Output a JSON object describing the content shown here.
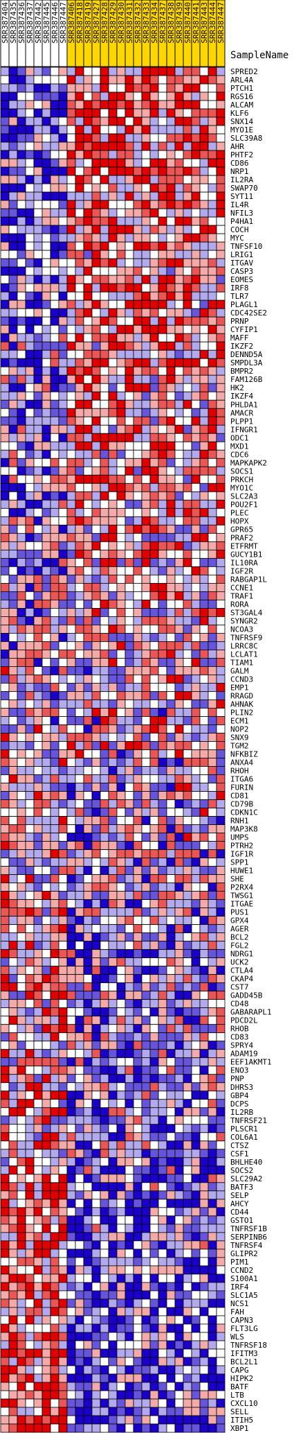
{
  "chart_data": {
    "type": "heatmap",
    "column_header_title": "SampleName",
    "columns": [
      {
        "name": "SRR387404",
        "group": "white"
      },
      {
        "name": "SRR387435",
        "group": "white"
      },
      {
        "name": "SRR387436",
        "group": "white"
      },
      {
        "name": "SRR387437",
        "group": "white"
      },
      {
        "name": "SRR387442",
        "group": "white"
      },
      {
        "name": "SRR387445",
        "group": "white"
      },
      {
        "name": "SRR387446",
        "group": "white"
      },
      {
        "name": "SRR387447",
        "group": "white"
      },
      {
        "name": "SRR387406",
        "group": "gold"
      },
      {
        "name": "SRR387418",
        "group": "gold"
      },
      {
        "name": "SRR387419",
        "group": "gold"
      },
      {
        "name": "SRR387427",
        "group": "gold"
      },
      {
        "name": "SRR387428",
        "group": "gold"
      },
      {
        "name": "SRR387429",
        "group": "gold"
      },
      {
        "name": "SRR387430",
        "group": "gold"
      },
      {
        "name": "SRR387431",
        "group": "gold"
      },
      {
        "name": "SRR387432",
        "group": "gold"
      },
      {
        "name": "SRR387433",
        "group": "gold"
      },
      {
        "name": "SRR387434",
        "group": "gold"
      },
      {
        "name": "SRR387437",
        "group": "gold"
      },
      {
        "name": "SRR387438",
        "group": "gold"
      },
      {
        "name": "SRR387439",
        "group": "gold"
      },
      {
        "name": "SRR387440",
        "group": "gold"
      },
      {
        "name": "SRR387441",
        "group": "gold"
      },
      {
        "name": "SRR387443",
        "group": "gold"
      },
      {
        "name": "SRR387444",
        "group": "gold"
      },
      {
        "name": "SRR387447",
        "group": "gold"
      }
    ],
    "rows": [
      "SPRED2",
      "ARL4A",
      "PTCH1",
      "RGS16",
      "ALCAM",
      "KLF6",
      "SNX14",
      "MYO1E",
      "SLC39A8",
      "AHR",
      "PHTF2",
      "CD86",
      "NRP1",
      "IL2RA",
      "SWAP70",
      "SYT11",
      "IL4R",
      "NFIL3",
      "P4HA1",
      "COCH",
      "MYC",
      "TNFSF10",
      "LRIG1",
      "ITGAV",
      "CASP3",
      "EOMES",
      "IRF8",
      "TLR7",
      "PLAGL1",
      "CDC42SE2",
      "PRNP",
      "CYFIP1",
      "MAFF",
      "IKZF2",
      "DENND5A",
      "SMPDL3A",
      "BMPR2",
      "FAM126B",
      "HK2",
      "IKZF4",
      "PHLDA1",
      "AMACR",
      "PLPP1",
      "IFNGR1",
      "ODC1",
      "MXD1",
      "CDC6",
      "MAPKAPK2",
      "SOCS1",
      "PRKCH",
      "MYO1C",
      "SLC2A3",
      "POU2F1",
      "PLEC",
      "HOPX",
      "GPR65",
      "PRAF2",
      "ETFRMT",
      "GUCY1B1",
      "IL10RA",
      "IGF2R",
      "RABGAP1L",
      "CCNE1",
      "TRAF1",
      "RORA",
      "ST3GAL4",
      "SYNGR2",
      "NCOA3",
      "TNFRSF9",
      "LRRC8C",
      "LCLAT1",
      "TIAM1",
      "GALM",
      "CCND3",
      "EMP1",
      "RRAGD",
      "AHNAK",
      "PLIN2",
      "ECM1",
      "NOP2",
      "SNX9",
      "TGM2",
      "NFKBIZ",
      "ANXA4",
      "RHOH",
      "ITGA6",
      "FURIN",
      "CD81",
      "CD79B",
      "CDKN1C",
      "RNH1",
      "MAP3K8",
      "UMPS",
      "PTRH2",
      "IGF1R",
      "SPP1",
      "HUWE1",
      "SHE",
      "P2RX4",
      "TWSG1",
      "ITGAE",
      "PUS1",
      "GPX4",
      "AGER",
      "BCL2",
      "FGL2",
      "NDRG1",
      "UCK2",
      "CTLA4",
      "CKAP4",
      "CST7",
      "GADD45B",
      "CD48",
      "GABARAPL1",
      "PDCD2L",
      "RHOB",
      "CD83",
      "SPRY4",
      "ADAM19",
      "EEF1AKMT1",
      "ENO3",
      "PNP",
      "DHRS3",
      "GBP4",
      "DCPS",
      "IL2RB",
      "TNFRSF21",
      "PLSCR1",
      "COL6A1",
      "CTSZ",
      "CSF1",
      "BHLHE40",
      "SOCS2",
      "SLC29A2",
      "BATF3",
      "SELP",
      "AHCY",
      "CD44",
      "GSTO1",
      "TNFRSF1B",
      "SERPINB6",
      "TNFRSF4",
      "GLIPR2",
      "PIM1",
      "CCND2",
      "S100A1",
      "IRF4",
      "SLC1A5",
      "NCS1",
      "FAH",
      "CAPN3",
      "FLT3LG",
      "WLS",
      "TNFRSF18",
      "IFITM3",
      "BCL2L1",
      "CAPG",
      "HIPK2",
      "BATF",
      "LTB",
      "CXCL10",
      "SELL",
      "ITIH5",
      "XBP1"
    ],
    "color_scale": {
      "low": "#1a00c8",
      "mid": "#ffffff",
      "high": "#e00000"
    },
    "values_note": "",
    "seed": 7
  }
}
